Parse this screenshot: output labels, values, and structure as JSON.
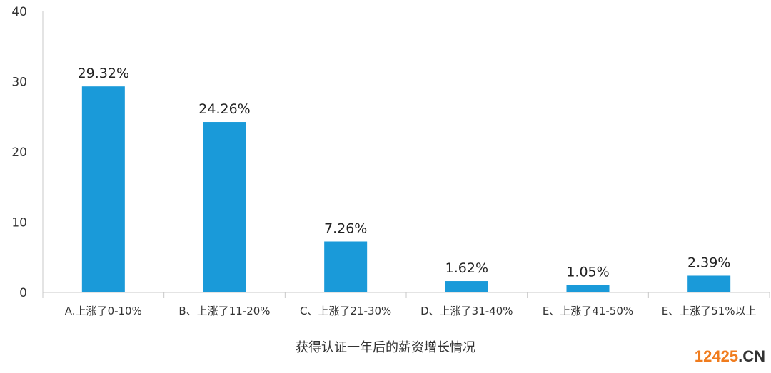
{
  "chart_data": {
    "type": "bar",
    "title": "获得认证一年后的薪资增长情况",
    "categories": [
      "A.上涨了0-10%",
      "B、上涨了11-20%",
      "C、上涨了21-30%",
      "D、上涨了31-40%",
      "E、上涨了41-50%",
      "E、上涨了51%以上"
    ],
    "values": [
      29.32,
      24.26,
      7.26,
      1.62,
      1.05,
      2.39
    ],
    "data_labels": [
      "29.32%",
      "24.26%",
      "7.26%",
      "1.62%",
      "1.05%",
      "2.39%"
    ],
    "yticks": [
      0,
      10,
      20,
      30,
      40
    ],
    "ylim": [
      0,
      40
    ],
    "xlabel": "",
    "ylabel": "",
    "grid": false,
    "bar_color": "#1a9ad9"
  },
  "watermark": {
    "number": "12425",
    "suffix": ".CN",
    "number_color": "#f07c1e",
    "suffix_color": "#333333"
  }
}
